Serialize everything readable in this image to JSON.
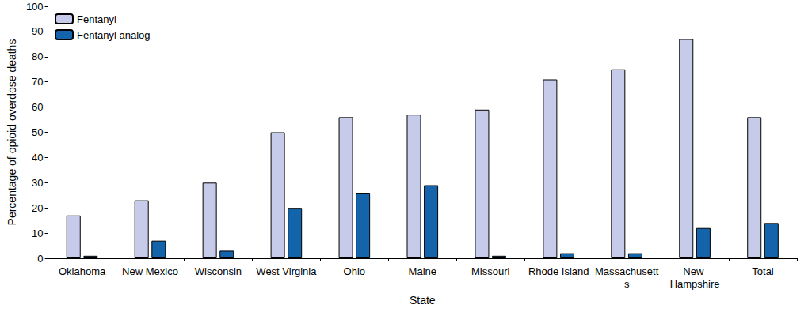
{
  "chart_data": {
    "type": "bar",
    "x_label": "State",
    "y_label": "Percentage of opioid overdose deaths",
    "categories": [
      "Oklahoma",
      "New Mexico",
      "Wisconsin",
      "West Virginia",
      "Ohio",
      "Maine",
      "Missouri",
      "Rhode Island",
      "Massachusetts",
      "New Hampshire",
      "Total"
    ],
    "series": [
      {
        "name": "Fentanyl",
        "color": "#c6cbe9",
        "values": [
          17,
          23,
          30,
          50,
          56,
          57,
          59,
          71,
          75,
          87,
          56
        ]
      },
      {
        "name": "Fentanyl analog",
        "color": "#1464ac",
        "values": [
          1,
          7,
          3,
          20,
          26,
          29,
          1,
          2,
          2,
          12,
          14
        ]
      }
    ],
    "ylim": [
      0,
      100
    ],
    "yticks": [
      0,
      10,
      20,
      30,
      40,
      50,
      60,
      70,
      80,
      90,
      100
    ],
    "grid": false,
    "legend": "upper left"
  }
}
